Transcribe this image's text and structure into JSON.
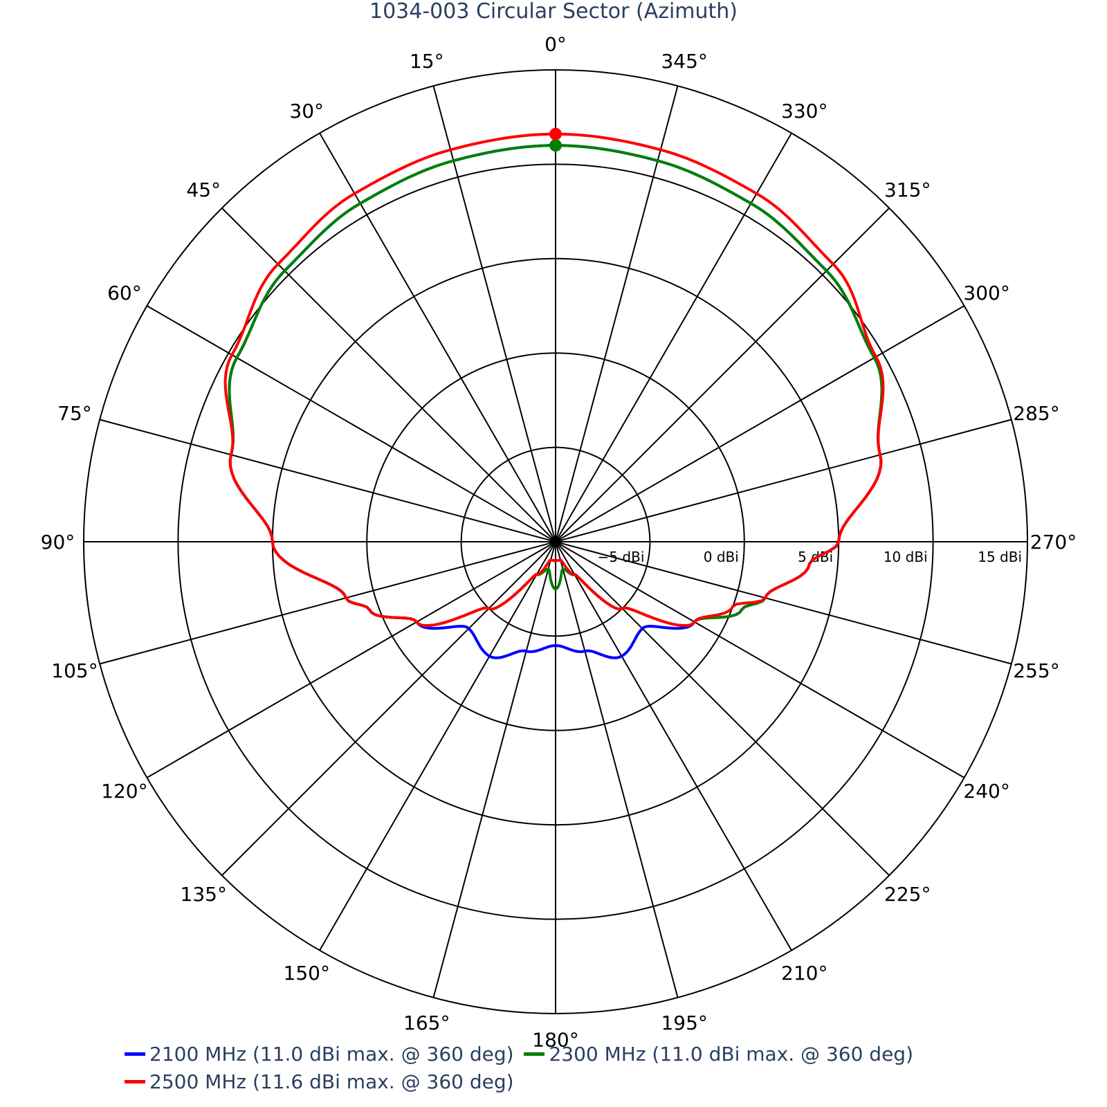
{
  "chart_data": {
    "type": "line",
    "subtype": "polar",
    "title": "1034-003 Circular Sector (Azimuth)",
    "angular_axis": {
      "direction": "counterclockwise",
      "rotation": "0° at top",
      "tick_labels": [
        "0°",
        "15°",
        "30°",
        "45°",
        "60°",
        "75°",
        "90°",
        "105°",
        "120°",
        "135°",
        "150°",
        "165°",
        "180°",
        "195°",
        "210°",
        "225°",
        "240°",
        "255°",
        "270°",
        "285°",
        "300°",
        "315°",
        "330°",
        "345°"
      ]
    },
    "radial_axis": {
      "range": [
        -10,
        15
      ],
      "tick_values": [
        -5,
        0,
        5,
        10,
        15
      ],
      "tick_labels": [
        "−5 dBi",
        "0 dBi",
        "5 dBi",
        "10 dBi",
        "15 dBi"
      ]
    },
    "theta": [
      0,
      15,
      30,
      45,
      60,
      75,
      90,
      105,
      110,
      120,
      135,
      150,
      165,
      180,
      195,
      210,
      225,
      240,
      250,
      255,
      265,
      270,
      285,
      300,
      315,
      330,
      345,
      360
    ],
    "series": [
      {
        "name": "2100 MHz (11.0 dBi max. @ 360 deg)",
        "color": "#0000ff",
        "r": [
          11.0,
          10.9,
          10.7,
          10.3,
          9.5,
          7.8,
          5.0,
          1.5,
          0.5,
          -1.5,
          -3.5,
          -3.0,
          -4.0,
          -4.5,
          -4.0,
          -3.0,
          -3.5,
          -1.5,
          0.5,
          1.5,
          3.5,
          5.0,
          7.8,
          9.5,
          10.3,
          10.7,
          10.9,
          11.0
        ]
      },
      {
        "name": "2300 MHz (11.0 dBi max. @ 360 deg)",
        "color": "#008000",
        "r": [
          11.0,
          10.9,
          10.7,
          10.3,
          9.5,
          7.8,
          5.0,
          1.5,
          0.5,
          -1.5,
          -5.0,
          -8.0,
          -8.5,
          -7.5,
          -8.5,
          -8.0,
          -5.0,
          -1.5,
          0.5,
          1.5,
          3.5,
          5.0,
          7.8,
          9.5,
          10.3,
          10.7,
          10.9,
          11.0
        ]
      },
      {
        "name": "2500 MHz (11.6 dBi max. @ 360 deg)",
        "color": "#ff0000",
        "r": [
          11.6,
          11.5,
          11.3,
          10.8,
          9.8,
          7.8,
          5.0,
          1.5,
          0.5,
          -1.5,
          -5.0,
          -8.0,
          -9.0,
          -9.0,
          -9.0,
          -8.0,
          -5.0,
          -1.5,
          0.0,
          1.5,
          3.5,
          5.0,
          7.8,
          9.6,
          10.8,
          11.3,
          11.5,
          11.6
        ]
      }
    ],
    "max_markers": [
      {
        "series": "2300 MHz (11.0 dBi max. @ 360 deg)",
        "theta": 360,
        "r": 11.0,
        "color": "#008000"
      },
      {
        "series": "2500 MHz (11.6 dBi max. @ 360 deg)",
        "theta": 360,
        "r": 11.6,
        "color": "#ff0000"
      }
    ],
    "legend": {
      "placement": "bottom"
    },
    "grid": true
  }
}
